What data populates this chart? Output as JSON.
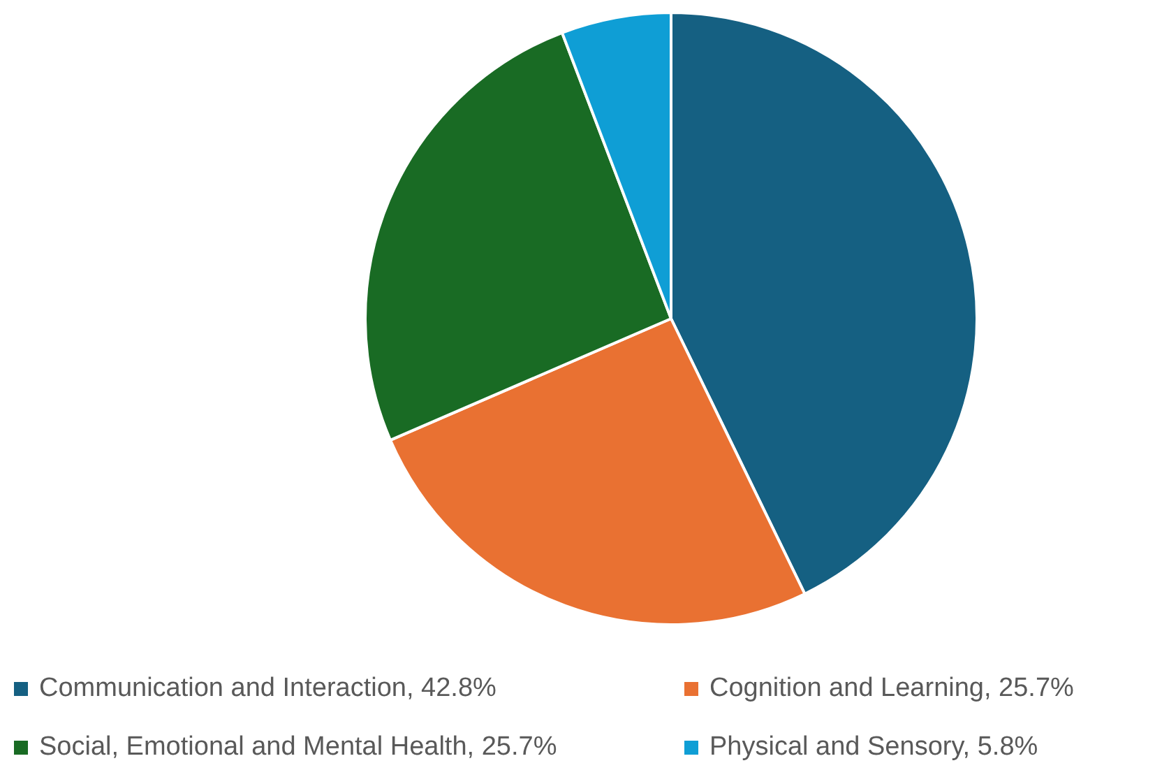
{
  "chart_data": {
    "type": "pie",
    "categories": [
      "Communication and Interaction, 42.8%",
      "Cognition and Learning, 25.7%",
      "Social, Emotional and Mental Health, 25.7%",
      "Physical and Sensory, 5.8%"
    ],
    "values": [
      42.8,
      25.7,
      25.7,
      5.8
    ],
    "colors": [
      "#156082",
      "#e97132",
      "#196b24",
      "#0f9ed5"
    ],
    "legend": "bottom"
  }
}
